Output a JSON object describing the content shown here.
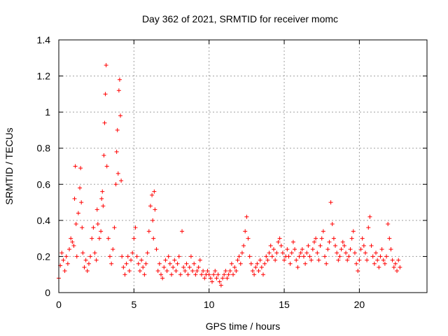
{
  "chart_data": {
    "type": "scatter",
    "title": "Day 362 of 2021, SRMTID for receiver momc",
    "xlabel": "GPS time / hours",
    "ylabel": "SRMTID / TECUs",
    "xlim": [
      0,
      24.5
    ],
    "ylim": [
      0,
      1.4
    ],
    "xticks": [
      0,
      5,
      10,
      15,
      20
    ],
    "yticks": [
      0,
      0.2,
      0.4,
      0.6,
      0.8,
      1,
      1.2,
      1.4
    ],
    "ytick_labels": [
      "0",
      "0.2",
      "0.4",
      "0.6",
      "0.8",
      "1",
      "1.2",
      "1.4"
    ],
    "grid": true,
    "marker": "+",
    "color": "#ff0000",
    "series": [
      {
        "name": "SRMTID",
        "x": [
          0.0,
          0.1,
          0.2,
          0.3,
          0.4,
          0.5,
          0.6,
          0.7,
          0.8,
          0.9,
          1.0,
          1.05,
          1.1,
          1.15,
          1.2,
          1.3,
          1.4,
          1.45,
          1.5,
          1.55,
          1.6,
          1.7,
          1.8,
          1.9,
          2.0,
          2.1,
          2.2,
          2.3,
          2.4,
          2.5,
          2.55,
          2.6,
          2.7,
          2.8,
          2.85,
          2.9,
          2.95,
          3.0,
          3.05,
          3.1,
          3.15,
          3.2,
          3.3,
          3.4,
          3.5,
          3.6,
          3.7,
          3.8,
          3.85,
          3.9,
          3.95,
          4.0,
          4.05,
          4.1,
          4.15,
          4.2,
          4.3,
          4.4,
          4.5,
          4.6,
          4.7,
          4.8,
          4.9,
          5.0,
          5.1,
          5.2,
          5.3,
          5.4,
          5.5,
          5.6,
          5.7,
          5.8,
          5.9,
          6.0,
          6.1,
          6.2,
          6.25,
          6.3,
          6.35,
          6.4,
          6.5,
          6.6,
          6.7,
          6.8,
          6.9,
          7.0,
          7.1,
          7.2,
          7.3,
          7.4,
          7.5,
          7.6,
          7.7,
          7.8,
          7.9,
          8.0,
          8.1,
          8.2,
          8.3,
          8.4,
          8.5,
          8.6,
          8.7,
          8.8,
          8.9,
          9.0,
          9.1,
          9.2,
          9.3,
          9.4,
          9.5,
          9.6,
          9.7,
          9.8,
          9.9,
          10.0,
          10.1,
          10.2,
          10.3,
          10.4,
          10.5,
          10.6,
          10.7,
          10.8,
          10.9,
          11.0,
          11.1,
          11.2,
          11.3,
          11.4,
          11.5,
          11.6,
          11.7,
          11.8,
          11.9,
          12.0,
          12.1,
          12.2,
          12.3,
          12.4,
          12.5,
          12.6,
          12.7,
          12.8,
          12.9,
          13.0,
          13.1,
          13.2,
          13.3,
          13.4,
          13.5,
          13.6,
          13.7,
          13.8,
          13.9,
          14.0,
          14.1,
          14.2,
          14.3,
          14.4,
          14.5,
          14.6,
          14.7,
          14.8,
          14.9,
          15.0,
          15.1,
          15.2,
          15.3,
          15.4,
          15.5,
          15.6,
          15.7,
          15.8,
          15.9,
          16.0,
          16.1,
          16.2,
          16.3,
          16.4,
          16.5,
          16.6,
          16.7,
          16.8,
          16.9,
          17.0,
          17.1,
          17.2,
          17.3,
          17.4,
          17.5,
          17.6,
          17.7,
          17.8,
          17.9,
          18.0,
          18.1,
          18.2,
          18.3,
          18.4,
          18.5,
          18.6,
          18.7,
          18.8,
          18.9,
          19.0,
          19.1,
          19.2,
          19.3,
          19.4,
          19.5,
          19.6,
          19.7,
          19.8,
          19.9,
          20.0,
          20.1,
          20.2,
          20.3,
          20.4,
          20.5,
          20.6,
          20.7,
          20.8,
          20.9,
          21.0,
          21.1,
          21.2,
          21.3,
          21.4,
          21.5,
          21.6,
          21.7,
          21.8,
          21.9,
          22.0,
          22.1,
          22.2,
          22.3,
          22.4,
          22.5,
          22.6,
          22.7
        ],
        "y": [
          0.08,
          0.15,
          0.22,
          0.18,
          0.12,
          0.2,
          0.16,
          0.24,
          0.3,
          0.28,
          0.26,
          0.52,
          0.7,
          0.38,
          0.2,
          0.44,
          0.58,
          0.69,
          0.5,
          0.36,
          0.22,
          0.14,
          0.18,
          0.12,
          0.16,
          0.2,
          0.3,
          0.36,
          0.22,
          0.18,
          0.46,
          0.38,
          0.3,
          0.34,
          0.52,
          0.56,
          0.48,
          0.76,
          0.94,
          1.1,
          1.26,
          0.7,
          0.3,
          0.2,
          0.16,
          0.24,
          0.36,
          0.6,
          0.78,
          0.9,
          0.66,
          1.12,
          1.18,
          0.98,
          0.62,
          0.2,
          0.14,
          0.1,
          0.16,
          0.2,
          0.12,
          0.18,
          0.22,
          0.3,
          0.36,
          0.2,
          0.16,
          0.12,
          0.18,
          0.14,
          0.1,
          0.16,
          0.22,
          0.34,
          0.48,
          0.54,
          0.4,
          0.3,
          0.56,
          0.46,
          0.24,
          0.12,
          0.16,
          0.1,
          0.08,
          0.14,
          0.18,
          0.12,
          0.2,
          0.16,
          0.1,
          0.14,
          0.18,
          0.12,
          0.16,
          0.2,
          0.1,
          0.34,
          0.14,
          0.12,
          0.16,
          0.1,
          0.14,
          0.2,
          0.12,
          0.16,
          0.1,
          0.12,
          0.14,
          0.18,
          0.1,
          0.12,
          0.08,
          0.1,
          0.12,
          0.1,
          0.08,
          0.06,
          0.1,
          0.12,
          0.08,
          0.1,
          0.06,
          0.04,
          0.08,
          0.1,
          0.12,
          0.08,
          0.1,
          0.12,
          0.16,
          0.1,
          0.14,
          0.12,
          0.18,
          0.2,
          0.16,
          0.22,
          0.26,
          0.34,
          0.42,
          0.3,
          0.2,
          0.16,
          0.12,
          0.1,
          0.14,
          0.16,
          0.12,
          0.18,
          0.14,
          0.1,
          0.16,
          0.2,
          0.18,
          0.22,
          0.26,
          0.2,
          0.24,
          0.18,
          0.22,
          0.28,
          0.3,
          0.26,
          0.22,
          0.18,
          0.2,
          0.24,
          0.2,
          0.16,
          0.22,
          0.28,
          0.24,
          0.18,
          0.14,
          0.2,
          0.22,
          0.24,
          0.2,
          0.16,
          0.22,
          0.26,
          0.2,
          0.18,
          0.24,
          0.28,
          0.3,
          0.22,
          0.18,
          0.26,
          0.3,
          0.34,
          0.2,
          0.16,
          0.24,
          0.28,
          0.5,
          0.38,
          0.3,
          0.26,
          0.22,
          0.18,
          0.2,
          0.24,
          0.28,
          0.26,
          0.22,
          0.18,
          0.2,
          0.24,
          0.3,
          0.34,
          0.22,
          0.16,
          0.12,
          0.18,
          0.24,
          0.3,
          0.26,
          0.22,
          0.18,
          0.36,
          0.42,
          0.26,
          0.2,
          0.16,
          0.22,
          0.18,
          0.14,
          0.2,
          0.24,
          0.18,
          0.16,
          0.2,
          0.38,
          0.3,
          0.24,
          0.18,
          0.14,
          0.16,
          0.12,
          0.18,
          0.14
        ]
      }
    ]
  }
}
